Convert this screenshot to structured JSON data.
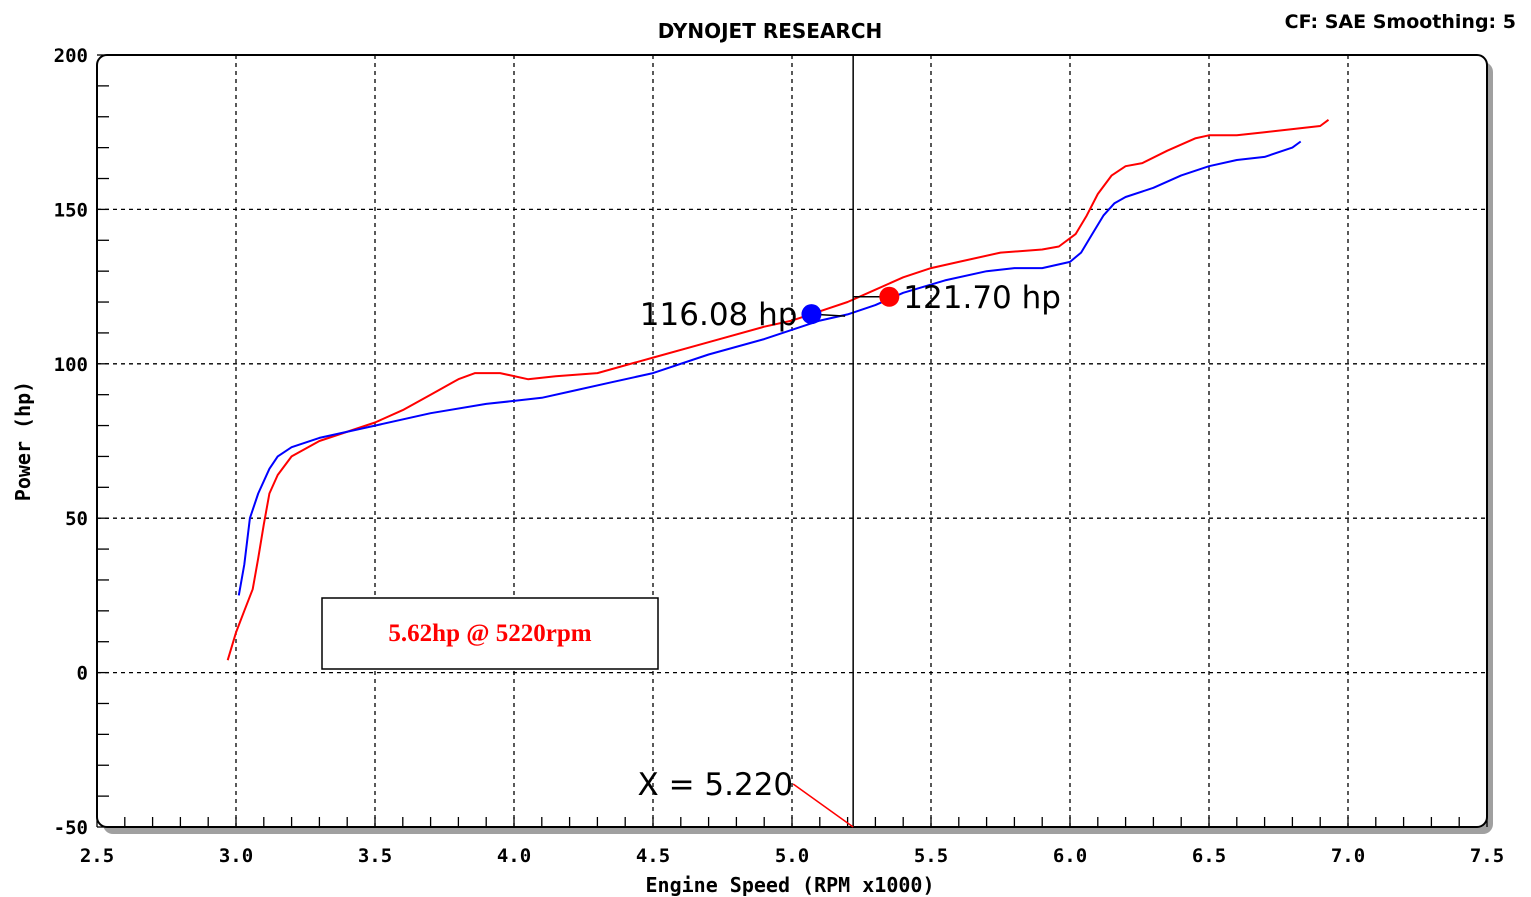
{
  "header": {
    "title": "DYNOJET RESEARCH",
    "settings": "CF: SAE  Smoothing: 5"
  },
  "chart_data": {
    "type": "line",
    "title": "DYNOJET RESEARCH",
    "xlabel": "Engine Speed (RPM x1000)",
    "ylabel": "Power (hp)",
    "xlim": [
      2.5,
      7.5
    ],
    "ylim": [
      -50,
      200
    ],
    "x_ticks": [
      "2.5",
      "3.0",
      "3.5",
      "4.0",
      "4.5",
      "5.0",
      "5.5",
      "6.0",
      "6.5",
      "7.0",
      "7.5"
    ],
    "y_ticks": [
      "200",
      "150",
      "100",
      "50",
      "0",
      "-50"
    ],
    "grid": true,
    "series": [
      {
        "color": "#ff0000",
        "points": [
          [
            2.97,
            4
          ],
          [
            3.0,
            13
          ],
          [
            3.03,
            20
          ],
          [
            3.06,
            27
          ],
          [
            3.08,
            37
          ],
          [
            3.1,
            48
          ],
          [
            3.12,
            58
          ],
          [
            3.15,
            64
          ],
          [
            3.2,
            70
          ],
          [
            3.3,
            75
          ],
          [
            3.5,
            81
          ],
          [
            3.6,
            85
          ],
          [
            3.7,
            90
          ],
          [
            3.8,
            95
          ],
          [
            3.86,
            97
          ],
          [
            3.95,
            97
          ],
          [
            4.05,
            95
          ],
          [
            4.15,
            96
          ],
          [
            4.3,
            97
          ],
          [
            4.5,
            102
          ],
          [
            4.7,
            107
          ],
          [
            4.9,
            112
          ],
          [
            5.0,
            114
          ],
          [
            5.1,
            117
          ],
          [
            5.2,
            120
          ],
          [
            5.3,
            124
          ],
          [
            5.4,
            128
          ],
          [
            5.5,
            131
          ],
          [
            5.6,
            133
          ],
          [
            5.75,
            136
          ],
          [
            5.9,
            137
          ],
          [
            5.96,
            138
          ],
          [
            6.02,
            142
          ],
          [
            6.06,
            148
          ],
          [
            6.1,
            155
          ],
          [
            6.15,
            161
          ],
          [
            6.2,
            164
          ],
          [
            6.26,
            165
          ],
          [
            6.35,
            169
          ],
          [
            6.45,
            173
          ],
          [
            6.5,
            174
          ],
          [
            6.6,
            174
          ],
          [
            6.7,
            175
          ],
          [
            6.8,
            176
          ],
          [
            6.9,
            177
          ],
          [
            6.93,
            179
          ]
        ]
      },
      {
        "color": "#0000ff",
        "points": [
          [
            3.01,
            25
          ],
          [
            3.03,
            35
          ],
          [
            3.05,
            50
          ],
          [
            3.08,
            58
          ],
          [
            3.12,
            66
          ],
          [
            3.15,
            70
          ],
          [
            3.2,
            73
          ],
          [
            3.3,
            76
          ],
          [
            3.5,
            80
          ],
          [
            3.7,
            84
          ],
          [
            3.9,
            87
          ],
          [
            4.0,
            88
          ],
          [
            4.1,
            89
          ],
          [
            4.2,
            91
          ],
          [
            4.35,
            94
          ],
          [
            4.5,
            97
          ],
          [
            4.7,
            103
          ],
          [
            4.9,
            108
          ],
          [
            5.0,
            111
          ],
          [
            5.1,
            114
          ],
          [
            5.2,
            116
          ],
          [
            5.3,
            119
          ],
          [
            5.4,
            123
          ],
          [
            5.55,
            127
          ],
          [
            5.7,
            130
          ],
          [
            5.8,
            131
          ],
          [
            5.9,
            131
          ],
          [
            6.0,
            133
          ],
          [
            6.04,
            136
          ],
          [
            6.08,
            142
          ],
          [
            6.12,
            148
          ],
          [
            6.16,
            152
          ],
          [
            6.2,
            154
          ],
          [
            6.3,
            157
          ],
          [
            6.4,
            161
          ],
          [
            6.5,
            164
          ],
          [
            6.6,
            166
          ],
          [
            6.7,
            167
          ],
          [
            6.8,
            170
          ],
          [
            6.83,
            172
          ]
        ]
      }
    ],
    "cursor_x": 5.22,
    "cursor_label": "X = 5.220",
    "markers": [
      {
        "x": 5.07,
        "y": 116.08,
        "color": "#0000ff",
        "label": "116.08 hp"
      },
      {
        "x": 5.35,
        "y": 121.7,
        "color": "#ff0000",
        "label": "121.70 hp"
      }
    ],
    "annotation": "5.62hp @ 5220rpm"
  }
}
